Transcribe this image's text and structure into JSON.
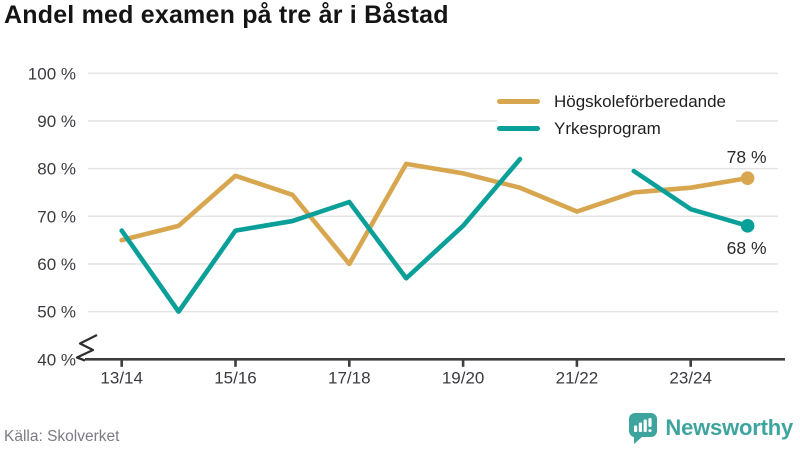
{
  "title": "Andel med examen på tre år i Båstad",
  "source": "Källa: Skolverket",
  "logo": {
    "text": "Newsworthy",
    "color": "#3ea49e"
  },
  "chart_data": {
    "type": "line",
    "categories": [
      "13/14",
      "14/15",
      "15/16",
      "16/17",
      "17/18",
      "18/19",
      "19/20",
      "20/21",
      "21/22",
      "22/23",
      "23/24",
      "24/25"
    ],
    "x_tick_labels": [
      "13/14",
      "15/16",
      "17/18",
      "19/20",
      "21/22",
      "23/24"
    ],
    "series": [
      {
        "name": "Högskoleförberedande",
        "color": "#d8a64e",
        "values": [
          65,
          68,
          78.5,
          74.5,
          60,
          81,
          79,
          76,
          71,
          75,
          76,
          78
        ],
        "end_label": "78 %"
      },
      {
        "name": "Yrkesprogram",
        "color": "#0aa099",
        "values": [
          67,
          50,
          67,
          69,
          73,
          57,
          68,
          82,
          null,
          79.5,
          71.5,
          68
        ],
        "end_label": "68 %"
      }
    ],
    "ylim": [
      40,
      100
    ],
    "yticks": [
      100,
      90,
      80,
      70,
      60,
      50,
      40
    ],
    "ytick_format": "{v} %",
    "axis_break": true,
    "grid": true,
    "legend_position": "top-right",
    "colors": {
      "gridline": "#e4e4e4",
      "axis": "#3d3d40",
      "tick_text": "#3a3a42",
      "end_label_text": "#2b2b2b"
    }
  }
}
